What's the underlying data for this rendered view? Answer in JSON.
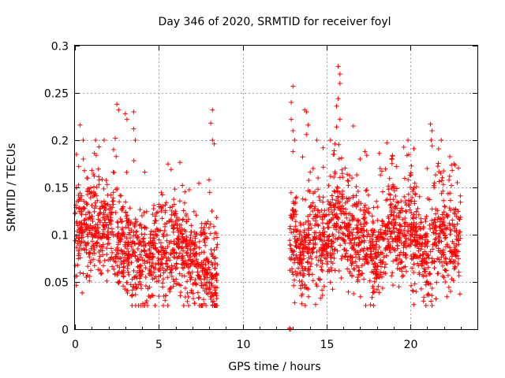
{
  "chart_data": {
    "type": "scatter",
    "title": "Day 346 of 2020, SRMTID for receiver foyl",
    "xlabel": "GPS time / hours",
    "ylabel": "SRMTID / TECUs",
    "xlim": [
      0,
      24
    ],
    "ylim": [
      0,
      0.3
    ],
    "xticks": [
      0,
      5,
      10,
      15,
      20
    ],
    "yticks": [
      0,
      0.05,
      0.1,
      0.15,
      0.2,
      0.25,
      0.3
    ],
    "xtick_labels": [
      "0",
      "5",
      "10",
      "15",
      "20"
    ],
    "ytick_labels": [
      "0",
      "0.05",
      "0.1",
      "0.15",
      "0.2",
      "0.25",
      "0.3"
    ],
    "grid": true,
    "marker": "+",
    "color": "#ff0000",
    "series": [
      {
        "name": "SRMTID",
        "segments": [
          {
            "x_start": 0.0,
            "x_end": 8.5,
            "y_typical_min": 0.04,
            "y_typical_max": 0.16,
            "y_center": 0.09
          },
          {
            "x_start": 12.8,
            "x_end": 23.0,
            "y_typical_min": 0.04,
            "y_typical_max": 0.16,
            "y_center": 0.095
          }
        ],
        "points": [
          [
            0.3,
            0.216
          ],
          [
            0.5,
            0.18
          ],
          [
            2.5,
            0.238
          ],
          [
            2.6,
            0.232
          ],
          [
            3.0,
            0.228
          ],
          [
            3.1,
            0.222
          ],
          [
            3.5,
            0.23
          ],
          [
            3.5,
            0.212
          ],
          [
            3.6,
            0.2
          ],
          [
            2.4,
            0.202
          ],
          [
            2.3,
            0.19
          ],
          [
            1.0,
            0.168
          ],
          [
            8.2,
            0.232
          ],
          [
            8.1,
            0.218
          ],
          [
            8.2,
            0.2
          ],
          [
            8.3,
            0.196
          ],
          [
            8.0,
            0.158
          ],
          [
            4.0,
            0.12
          ],
          [
            12.9,
            0.24
          ],
          [
            13.0,
            0.257
          ],
          [
            12.9,
            0.222
          ],
          [
            13.0,
            0.21
          ],
          [
            13.1,
            0.2
          ],
          [
            13.0,
            0.188
          ],
          [
            13.7,
            0.232
          ],
          [
            13.8,
            0.23
          ],
          [
            13.9,
            0.216
          ],
          [
            13.8,
            0.206
          ],
          [
            14.2,
            0.17
          ],
          [
            15.7,
            0.278
          ],
          [
            15.8,
            0.27
          ],
          [
            15.8,
            0.26
          ],
          [
            15.7,
            0.244
          ],
          [
            15.6,
            0.236
          ],
          [
            15.8,
            0.222
          ],
          [
            15.6,
            0.214
          ],
          [
            15.5,
            0.196
          ],
          [
            15.4,
            0.185
          ],
          [
            16.6,
            0.215
          ],
          [
            17.3,
            0.188
          ],
          [
            17.4,
            0.184
          ],
          [
            18.2,
            0.17
          ],
          [
            19.8,
            0.184
          ],
          [
            21.2,
            0.217
          ],
          [
            21.3,
            0.21
          ],
          [
            21.3,
            0.194
          ],
          [
            22.6,
            0.175
          ],
          [
            22.5,
            0.168
          ],
          [
            21.0,
            0.17
          ],
          [
            17.0,
            0.18
          ],
          [
            19.0,
            0.15
          ],
          [
            20.0,
            0.15
          ],
          [
            14.5,
            0.16
          ],
          [
            22.8,
            0.155
          ],
          [
            4.4,
            0.035
          ],
          [
            5.3,
            0.035
          ],
          [
            13.1,
            0.028
          ],
          [
            20.2,
            0.026
          ],
          [
            21.0,
            0.036
          ],
          [
            22.4,
            0.04
          ],
          [
            12.8,
            0.0
          ],
          [
            12.8,
            0.001
          ],
          [
            12.85,
            0.0
          ]
        ],
        "generated_point_count": 2600
      }
    ]
  }
}
